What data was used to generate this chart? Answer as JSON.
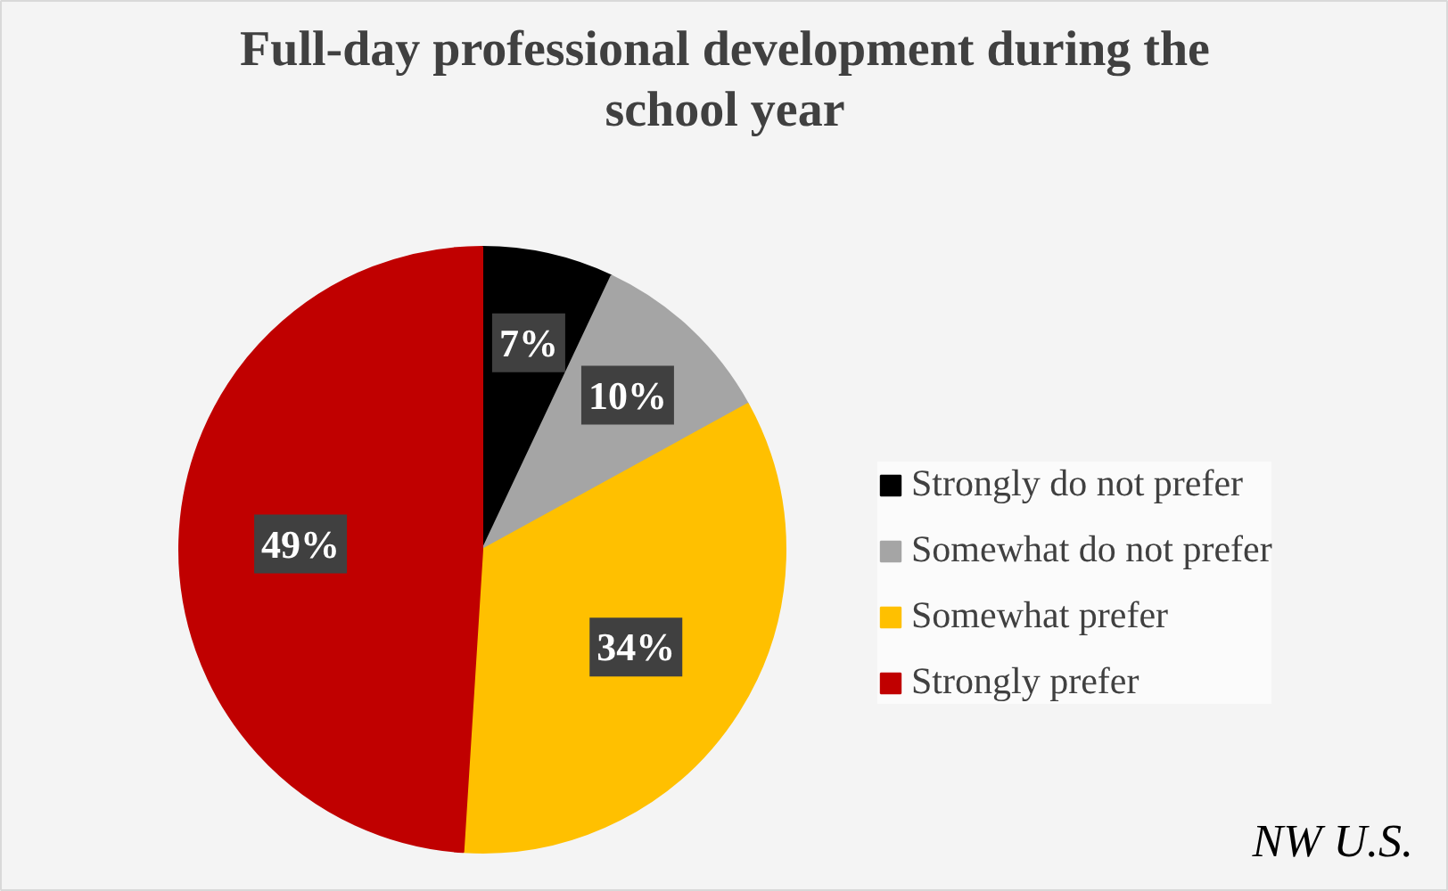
{
  "chart_data": {
    "type": "pie",
    "title": "Full-day professional development during the\nschool year",
    "categories": [
      "Strongly do not prefer",
      "Somewhat do not prefer",
      "Somewhat prefer",
      "Strongly prefer"
    ],
    "values": [
      7,
      10,
      34,
      49
    ],
    "colors": [
      "#000000",
      "#a5a5a5",
      "#ffc000",
      "#c00000"
    ],
    "value_labels": [
      "7%",
      "10%",
      "34%",
      "49%"
    ],
    "legend": "right",
    "annotations": [
      "NW U.S."
    ]
  }
}
